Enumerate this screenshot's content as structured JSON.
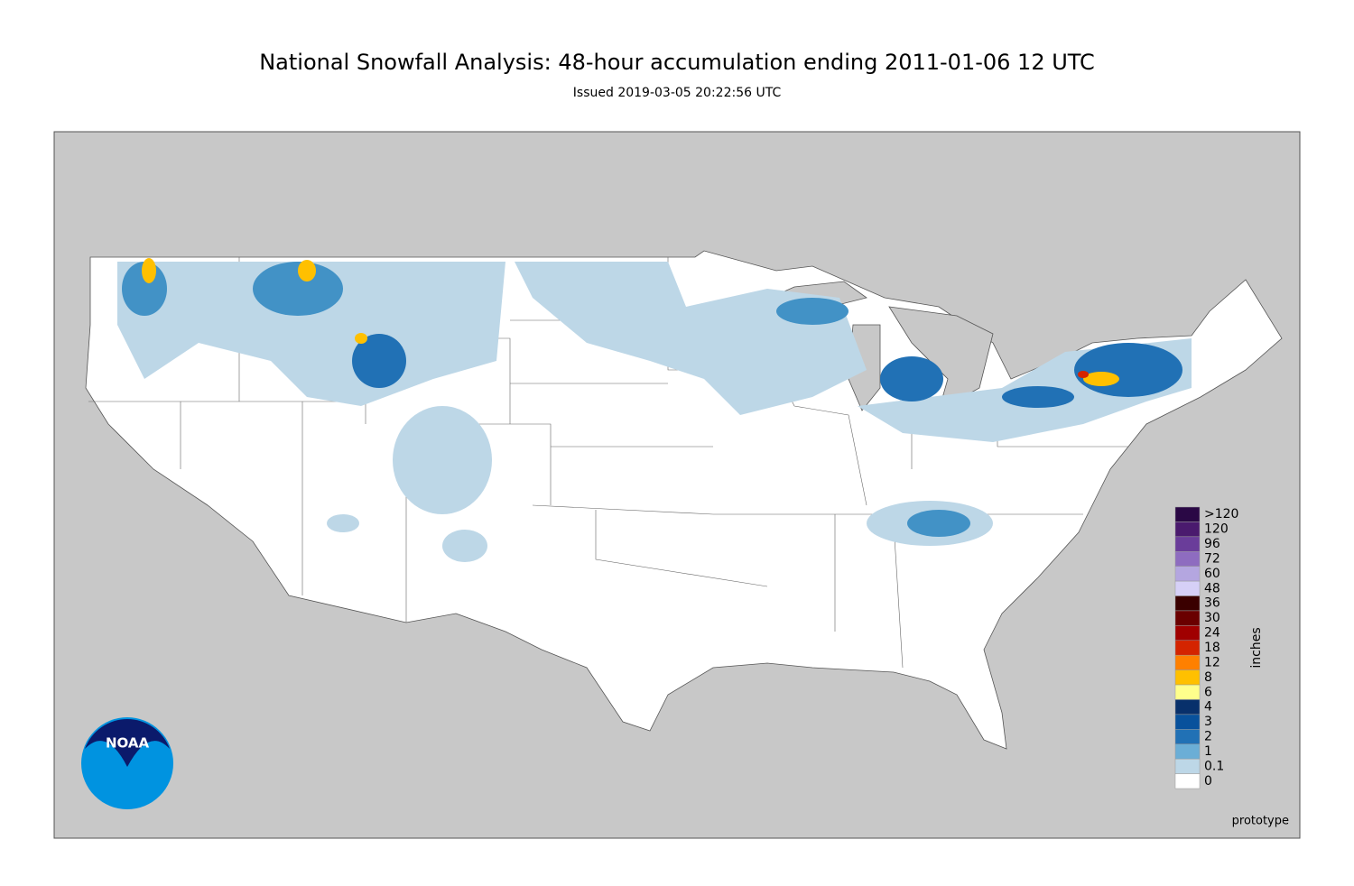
{
  "header": {
    "title": "National Snowfall Analysis: 48-hour accumulation ending 2011-01-06 12 UTC",
    "subtitle": "Issued 2019-03-05 20:22:56 UTC"
  },
  "legend": {
    "unit": "inches",
    "levels": [
      {
        "label": ">120",
        "color": "#2a0845"
      },
      {
        "label": "120",
        "color": "#4a1a6e"
      },
      {
        "label": "96",
        "color": "#6a3d9a"
      },
      {
        "label": "72",
        "color": "#8e6cc0"
      },
      {
        "label": "60",
        "color": "#b4a6e0"
      },
      {
        "label": "48",
        "color": "#d6d0f7"
      },
      {
        "label": "36",
        "color": "#3a0000"
      },
      {
        "label": "30",
        "color": "#6a0000"
      },
      {
        "label": "24",
        "color": "#a00000"
      },
      {
        "label": "18",
        "color": "#d42400"
      },
      {
        "label": "12",
        "color": "#ff8000"
      },
      {
        "label": "8",
        "color": "#ffc000"
      },
      {
        "label": "6",
        "color": "#ffff8c"
      },
      {
        "label": "4",
        "color": "#08306b"
      },
      {
        "label": "3",
        "color": "#08519c"
      },
      {
        "label": "2",
        "color": "#2171b5"
      },
      {
        "label": "1",
        "color": "#6baed6"
      },
      {
        "label": "0.1",
        "color": "#bdd7e7"
      },
      {
        "label": "0",
        "color": "#ffffff"
      }
    ]
  },
  "logo": {
    "text": "NOAA"
  },
  "footer": {
    "note": "prototype"
  }
}
